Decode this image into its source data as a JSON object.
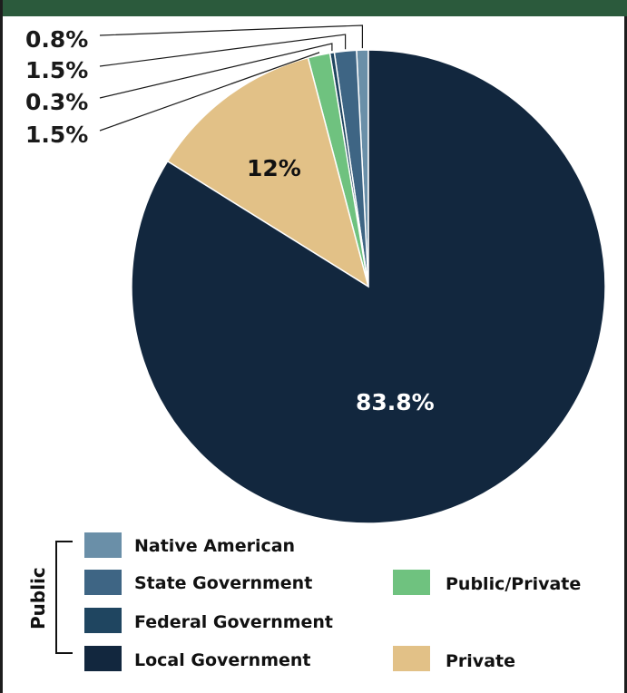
{
  "chart_data": {
    "type": "pie",
    "slices": [
      {
        "label": "Native American",
        "value": 0.8,
        "color": "#6a8fa8",
        "display": "0.8%"
      },
      {
        "label": "State Government",
        "value": 1.5,
        "color": "#3e6584",
        "display": "1.5%"
      },
      {
        "label": "Federal Government",
        "value": 0.3,
        "color": "#1f4560",
        "display": "0.3%"
      },
      {
        "label": "Public/Private",
        "value": 1.5,
        "color": "#6fc27f",
        "display": "1.5%"
      },
      {
        "label": "Private",
        "value": 12,
        "color": "#e2c187",
        "display": "12%"
      },
      {
        "label": "Local Government",
        "value": 83.8,
        "color": "#12273e",
        "display": "83.8%"
      }
    ],
    "legend": {
      "group_label": "Public",
      "grouped": [
        "Native American",
        "State Government",
        "Federal Government",
        "Local Government"
      ],
      "other": [
        "Public/Private",
        "Private"
      ]
    }
  },
  "colors": {
    "header_bar": "#2b5a3c",
    "frame": "#1d1d1d"
  }
}
